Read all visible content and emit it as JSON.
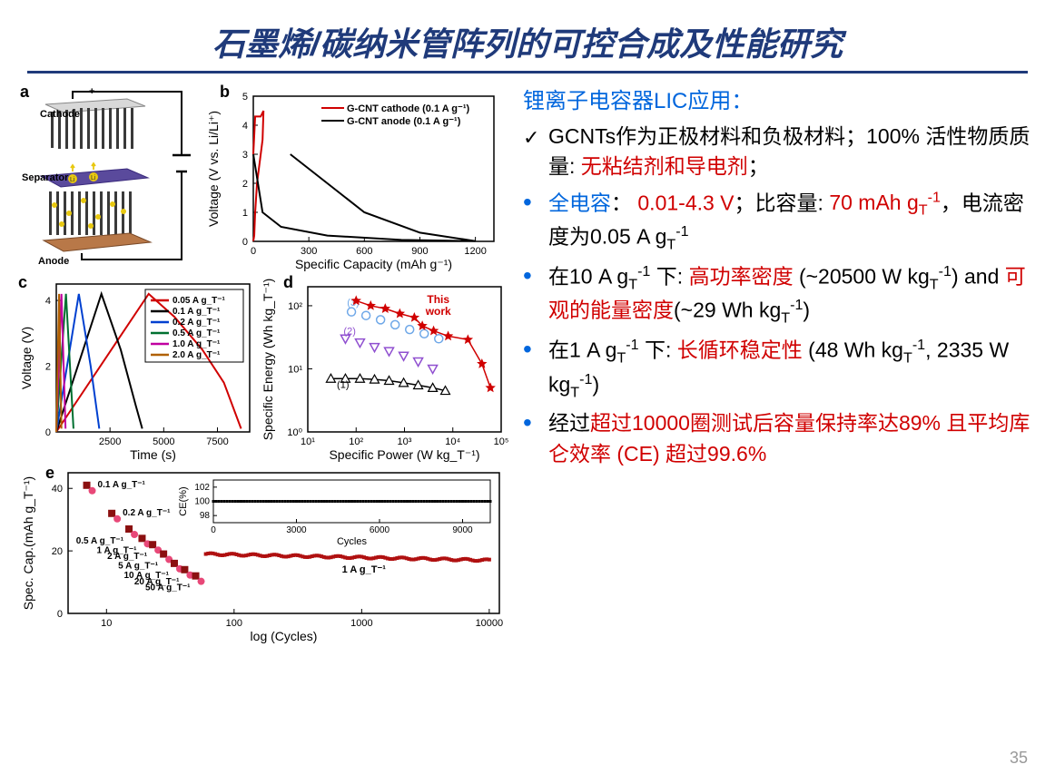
{
  "title": "石墨烯/碳纳米管阵列的可控合成及性能研究",
  "subtitle": "锂离子电容器LIC应用：",
  "page_number": "35",
  "bullets": [
    {
      "type": "check",
      "html": "GCNTs作为正极材料和负极材料；100% 活性物质质量: <span class='red'>无粘结剂和导电剂</span>；"
    },
    {
      "type": "dot",
      "html": "<span class='blue'>全电容</span>： <span class='red'>0.01-4.3 V</span>；比容量: <span class='red'>70 mAh g<span class='sub'>T</span><span class='sup'>-1</span></span>，电流密度为0.05 A g<span class='sub'>T</span><span class='sup'>-1</span>"
    },
    {
      "type": "dot",
      "html": "在10 A g<span class='sub'>T</span><span class='sup'>-1</span> 下: <span class='red'>高功率密度</span> (~20500 W kg<span class='sub'>T</span><span class='sup'>-1</span>) and <span class='red'>可观的能量密度</span>(~29 Wh kg<span class='sub'>T</span><span class='sup'>-1</span>)"
    },
    {
      "type": "dot",
      "html": "在1 A g<span class='sub'>T</span><span class='sup'>-1</span> 下: <span class='red'>长循环稳定性</span> (48 Wh kg<span class='sub'>T</span><span class='sup'>-1</span>, 2335 W kg<span class='sub'>T</span><span class='sup'>-1</span>)"
    },
    {
      "type": "dot",
      "html": "经过<span class='red'>超过10000圈测试后容量保持率达89% 且平均库仑效率 (CE) 超过99.6%</span>"
    }
  ],
  "panel_a": {
    "label": "a",
    "cathode_text": "Cathode",
    "anode_text": "Anode",
    "separator_text": "Separator",
    "plus": "+",
    "minus": "−",
    "cathode_color": "#d8d8d8",
    "separator_color": "#5a4a9c",
    "anode_base_color": "#b87848",
    "cnt_color": "#3a3a3a",
    "li_color": "#e8c810",
    "wire_color": "#000000"
  },
  "panel_b": {
    "label": "b",
    "xlabel": "Specific Capacity (mAh g⁻¹)",
    "ylabel": "Voltage (V vs. Li/Li⁺)",
    "xlim": [
      0,
      1300
    ],
    "xticks": [
      0,
      300,
      600,
      900,
      1200
    ],
    "ylim": [
      0,
      5
    ],
    "yticks": [
      0,
      1,
      2,
      3,
      4,
      5
    ],
    "legend": [
      {
        "label": "G-CNT cathode (0.1 A g⁻¹)",
        "color": "#d00000"
      },
      {
        "label": "G-CNT anode (0.1 A g⁻¹)",
        "color": "#000000"
      }
    ],
    "cathode_color": "#d00000",
    "anode_color": "#000000",
    "cathode_path_charge": [
      [
        0,
        3.0
      ],
      [
        10,
        4.3
      ],
      [
        40,
        4.3
      ],
      [
        55,
        4.5
      ]
    ],
    "cathode_path_discharge": [
      [
        55,
        4.5
      ],
      [
        50,
        3.5
      ],
      [
        40,
        3.0
      ],
      [
        20,
        2.0
      ],
      [
        10,
        1.0
      ],
      [
        5,
        0.2
      ],
      [
        0,
        0.01
      ]
    ],
    "anode_path_discharge": [
      [
        0,
        3.0
      ],
      [
        50,
        1.0
      ],
      [
        150,
        0.5
      ],
      [
        400,
        0.2
      ],
      [
        800,
        0.05
      ],
      [
        1200,
        0.01
      ]
    ],
    "anode_path_charge": [
      [
        1200,
        0.01
      ],
      [
        900,
        0.3
      ],
      [
        600,
        1.0
      ],
      [
        400,
        2.0
      ],
      [
        300,
        2.5
      ],
      [
        200,
        3.0
      ]
    ]
  },
  "panel_c": {
    "label": "c",
    "xlabel": "Time (s)",
    "ylabel": "Voltage (V)",
    "xlim": [
      0,
      9000
    ],
    "xticks": [
      2500,
      5000,
      7500
    ],
    "ylim": [
      0,
      4.5
    ],
    "yticks": [
      0,
      2,
      4
    ],
    "series": [
      {
        "label": "0.05 A g_T⁻¹",
        "color": "#d00000",
        "up": [
          [
            0,
            0
          ],
          [
            4300,
            4.2
          ]
        ],
        "down": [
          [
            4300,
            4.2
          ],
          [
            5500,
            3.5
          ],
          [
            6800,
            2.5
          ],
          [
            7800,
            1.5
          ],
          [
            8600,
            0.1
          ]
        ]
      },
      {
        "label": "0.1 A g_T⁻¹",
        "color": "#000000",
        "up": [
          [
            0,
            0
          ],
          [
            2100,
            4.2
          ]
        ],
        "down": [
          [
            2100,
            4.2
          ],
          [
            3000,
            2.5
          ],
          [
            3700,
            0.8
          ],
          [
            4000,
            0.1
          ]
        ]
      },
      {
        "label": "0.2 A g_T⁻¹",
        "color": "#0040d0",
        "up": [
          [
            0,
            0
          ],
          [
            1050,
            4.2
          ]
        ],
        "down": [
          [
            1050,
            4.2
          ],
          [
            1600,
            2.0
          ],
          [
            2000,
            0.1
          ]
        ]
      },
      {
        "label": "0.5 A g_T⁻¹",
        "color": "#007030",
        "up": [
          [
            0,
            0
          ],
          [
            450,
            4.2
          ]
        ],
        "down": [
          [
            450,
            4.2
          ],
          [
            800,
            0.1
          ]
        ]
      },
      {
        "label": "1.0 A g_T⁻¹",
        "color": "#c000a0",
        "up": [
          [
            0,
            0
          ],
          [
            240,
            4.2
          ]
        ],
        "down": [
          [
            240,
            4.2
          ],
          [
            430,
            0.1
          ]
        ]
      },
      {
        "label": "2.0 A g_T⁻¹",
        "color": "#b06000",
        "up": [
          [
            0,
            0
          ],
          [
            130,
            4.2
          ]
        ],
        "down": [
          [
            130,
            4.2
          ],
          [
            240,
            0.1
          ]
        ]
      }
    ]
  },
  "panel_d": {
    "label": "d",
    "xlabel": "Specific Power (W kg_T⁻¹)",
    "ylabel": "Specific Energy (Wh kg_T⁻¹)",
    "xlim": [
      10,
      100000
    ],
    "xticks": [
      10,
      100,
      1000,
      10000,
      100000
    ],
    "xticklabels": [
      "10¹",
      "10²",
      "10³",
      "10⁴",
      "10⁵"
    ],
    "ylim": [
      1,
      200
    ],
    "yticks": [
      1,
      10,
      100
    ],
    "yticklabels": [
      "10⁰",
      "10¹",
      "10²"
    ],
    "thiswork": {
      "color": "#d00000",
      "label": "This work",
      "points": [
        [
          100,
          120
        ],
        [
          200,
          100
        ],
        [
          400,
          90
        ],
        [
          800,
          75
        ],
        [
          1600,
          65
        ],
        [
          2335,
          48
        ],
        [
          4000,
          40
        ],
        [
          8000,
          33
        ],
        [
          20500,
          29
        ],
        [
          40000,
          12
        ],
        [
          60000,
          5
        ]
      ]
    },
    "ref3": {
      "color": "#6fa8e8",
      "label": "(3)",
      "points": [
        [
          80,
          80
        ],
        [
          160,
          70
        ],
        [
          320,
          60
        ],
        [
          640,
          50
        ],
        [
          1280,
          42
        ],
        [
          2560,
          36
        ],
        [
          5120,
          30
        ]
      ]
    },
    "ref2": {
      "color": "#9050d0",
      "label": "(2)",
      "points": [
        [
          60,
          30
        ],
        [
          120,
          26
        ],
        [
          240,
          22
        ],
        [
          480,
          19
        ],
        [
          960,
          16
        ],
        [
          1920,
          13
        ],
        [
          3840,
          10
        ]
      ]
    },
    "ref1": {
      "color": "#000000",
      "label": "(1)",
      "points": [
        [
          30,
          7
        ],
        [
          60,
          7
        ],
        [
          120,
          7
        ],
        [
          240,
          6.8
        ],
        [
          480,
          6.5
        ],
        [
          960,
          6
        ],
        [
          1920,
          5.5
        ],
        [
          3840,
          5
        ],
        [
          7000,
          4.5
        ]
      ]
    }
  },
  "panel_e": {
    "label": "e",
    "xlabel": "log (Cycles)",
    "ylabel": "Spec. Cap.(mAh g_T⁻¹)",
    "xlim": [
      5,
      12000
    ],
    "xticks": [
      10,
      100,
      1000,
      10000
    ],
    "ylim": [
      0,
      45
    ],
    "yticks": [
      0,
      20,
      40
    ],
    "rate_points": [
      {
        "x": 7,
        "y": 41,
        "label": "0.1 A g_T⁻¹"
      },
      {
        "x": 11,
        "y": 32,
        "label": "0.2 A g_T⁻¹"
      },
      {
        "x": 15,
        "y": 27,
        "label": "0.5 A g_T⁻¹"
      },
      {
        "x": 19,
        "y": 24,
        "label": "1 A g_T⁻¹"
      },
      {
        "x": 23,
        "y": 22,
        "label": "2 A g_T⁻¹"
      },
      {
        "x": 28,
        "y": 19,
        "label": "5 A g_T⁻¹"
      },
      {
        "x": 34,
        "y": 16,
        "label": "10 A g_T⁻¹"
      },
      {
        "x": 41,
        "y": 14,
        "label": "20 A g_T⁻¹"
      },
      {
        "x": 50,
        "y": 12,
        "label": "50 A g_T⁻¹"
      }
    ],
    "long_cycle": {
      "start_x": 60,
      "end_x": 10000,
      "start_y": 19,
      "end_y": 17,
      "color": "#b01010",
      "label": "1 A g_T⁻¹"
    },
    "square_color": "#8b1010",
    "circle_color": "#e84878",
    "inset": {
      "xlabel": "Cycles",
      "ylabel": "CE(%)",
      "xlim": [
        0,
        10000
      ],
      "xticks": [
        0,
        3000,
        6000,
        9000
      ],
      "ylim": [
        97,
        103
      ],
      "yticks": [
        98,
        100,
        102
      ],
      "value": 100,
      "color": "#000000"
    }
  }
}
